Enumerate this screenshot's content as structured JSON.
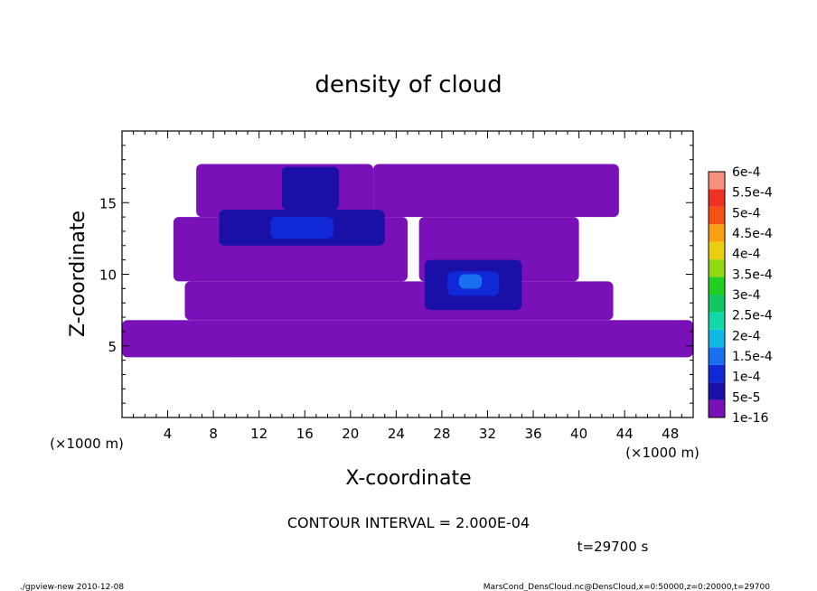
{
  "chart_data": {
    "type": "heatmap",
    "title": "density of cloud",
    "xlabel": "X-coordinate",
    "ylabel": "Z-coordinate",
    "x_unit": "(×1000 m)",
    "y_unit": "(×1000 m)",
    "xlim": [
      0,
      50
    ],
    "ylim": [
      0,
      20
    ],
    "x_ticks": [
      4,
      8,
      12,
      16,
      20,
      24,
      28,
      32,
      36,
      40,
      44,
      48
    ],
    "y_ticks": [
      5,
      10,
      15
    ],
    "colorbar": {
      "labels": [
        "1e-16",
        "5e-5",
        "1e-4",
        "1.5e-4",
        "2e-4",
        "2.5e-4",
        "3e-4",
        "3.5e-4",
        "4e-4",
        "4.5e-4",
        "5e-4",
        "5.5e-4",
        "6e-4"
      ],
      "colors": [
        "#7a10b8",
        "#1a10a8",
        "#1028d8",
        "#1870f0",
        "#10b8e8",
        "#10d8a8",
        "#10c860",
        "#20d020",
        "#90d810",
        "#e8d010",
        "#f8a010",
        "#f85010",
        "#f03020",
        "#f89080"
      ]
    },
    "regions": [
      {
        "level": "1e-16",
        "x": [
          [
            0.0,
            50.0
          ]
        ],
        "z": [
          4.2,
          6.8
        ]
      },
      {
        "level": "1e-16",
        "x": [
          [
            5.5,
            43.0
          ]
        ],
        "z": [
          6.8,
          9.5
        ]
      },
      {
        "level": "1e-16",
        "x": [
          [
            4.5,
            25.0
          ],
          [
            26.0,
            40.0
          ]
        ],
        "z": [
          9.5,
          14.0
        ]
      },
      {
        "level": "1e-16",
        "x": [
          [
            6.5,
            22.0
          ],
          [
            22.0,
            43.5
          ]
        ],
        "z": [
          14.0,
          17.7
        ]
      },
      {
        "level": "5e-5",
        "x": [
          [
            8.5,
            23.0
          ]
        ],
        "z": [
          12.0,
          14.5
        ]
      },
      {
        "level": "5e-5",
        "x": [
          [
            26.5,
            35.0
          ]
        ],
        "z": [
          7.5,
          11.0
        ]
      },
      {
        "level": "5e-5",
        "x": [
          [
            14.0,
            19.0
          ]
        ],
        "z": [
          14.5,
          17.5
        ]
      },
      {
        "level": "1e-4",
        "x": [
          [
            13.0,
            18.5
          ]
        ],
        "z": [
          12.5,
          14.0
        ]
      },
      {
        "level": "1e-4",
        "x": [
          [
            28.5,
            33.0
          ]
        ],
        "z": [
          8.5,
          10.2
        ]
      },
      {
        "level": "1.5e-4",
        "x": [
          [
            29.5,
            31.5
          ]
        ],
        "z": [
          9.0,
          10.0
        ]
      }
    ]
  },
  "labels": {
    "contour_interval": "CONTOUR INTERVAL = 2.000E-04",
    "time": "t=29700 s",
    "footer_left": "./gpview-new   2010-12-08",
    "footer_right": "MarsCond_DensCloud.nc@DensCloud,x=0:50000,z=0:20000,t=29700"
  }
}
